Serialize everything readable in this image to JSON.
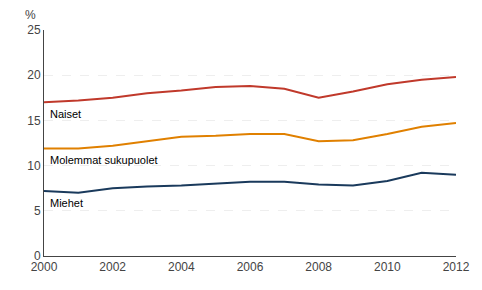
{
  "chart_data": {
    "type": "line",
    "ylabel": "%",
    "x": [
      2000,
      2001,
      2002,
      2003,
      2004,
      2005,
      2006,
      2007,
      2008,
      2009,
      2010,
      2011,
      2012
    ],
    "series": [
      {
        "name": "Naiset",
        "color": "#c0392b",
        "values": [
          17.0,
          17.2,
          17.5,
          18.0,
          18.3,
          18.7,
          18.8,
          18.5,
          17.5,
          18.2,
          19.0,
          19.5,
          19.8
        ]
      },
      {
        "name": "Molemmat sukupuolet",
        "color": "#e08000",
        "values": [
          11.9,
          11.9,
          12.2,
          12.7,
          13.2,
          13.3,
          13.5,
          13.5,
          12.7,
          12.8,
          13.5,
          14.3,
          14.7
        ]
      },
      {
        "name": "Miehet",
        "color": "#1a3a5c",
        "values": [
          7.2,
          7.0,
          7.5,
          7.7,
          7.8,
          8.0,
          8.2,
          8.2,
          7.9,
          7.8,
          8.3,
          9.2,
          9.0
        ]
      }
    ],
    "xlim": [
      2000,
      2012
    ],
    "xticks": [
      2000,
      2002,
      2004,
      2006,
      2008,
      2010,
      2012
    ],
    "ylim": [
      0,
      25
    ],
    "yticks": [
      0,
      5,
      10,
      15,
      20,
      25
    ],
    "grid": true
  }
}
